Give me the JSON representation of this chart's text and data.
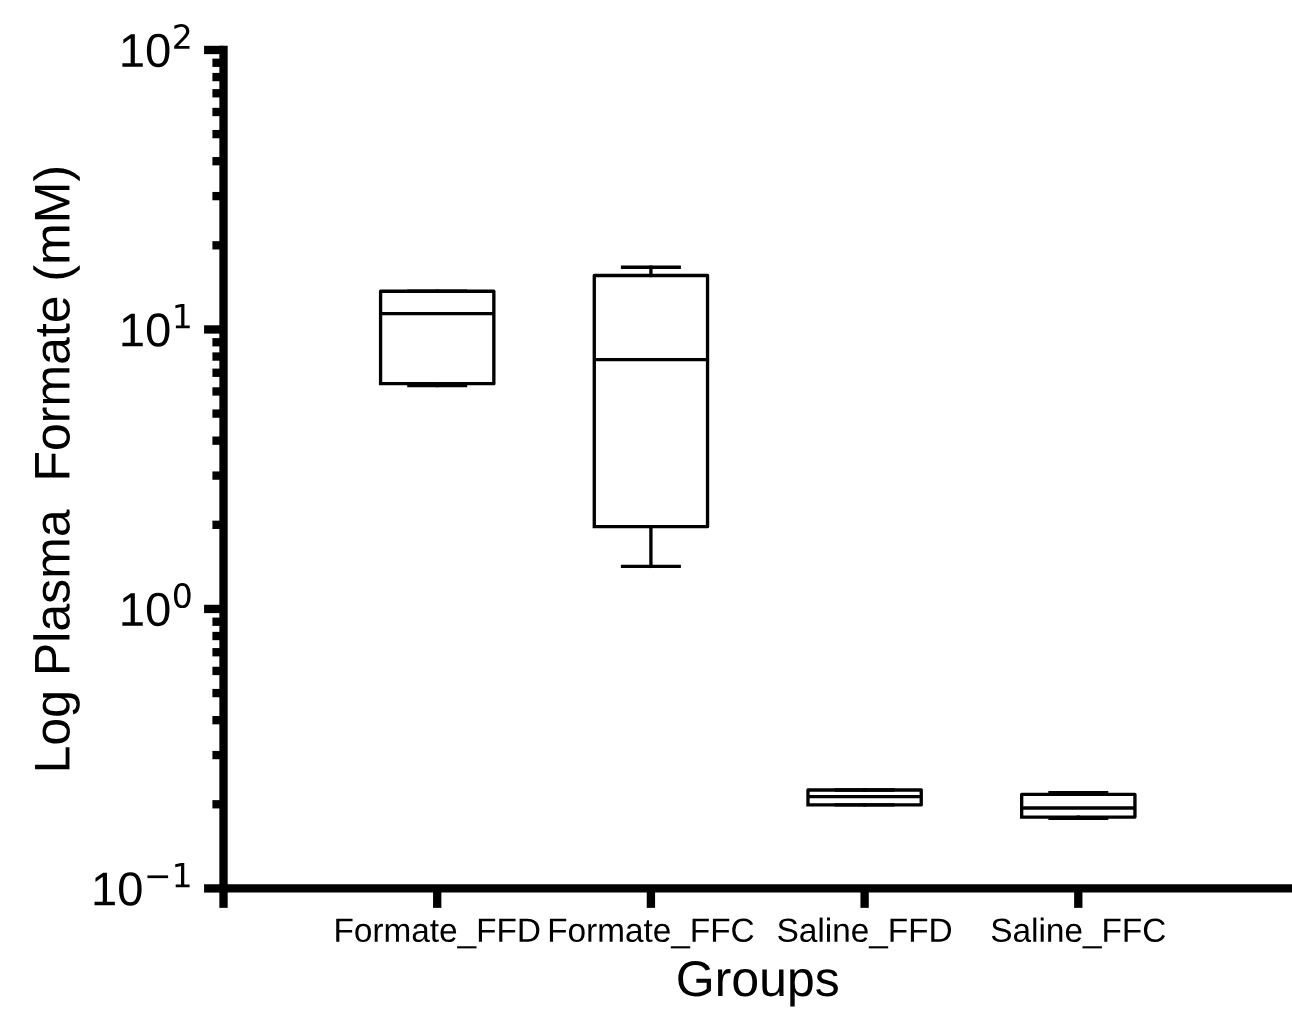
{
  "chart_data": {
    "type": "box",
    "xlabel": "Groups",
    "ylabel": "Log Plasma  Formate (mM)",
    "categories": [
      "Formate_FFD",
      "Formate_FFC",
      "Saline_FFD",
      "Saline_FFC"
    ],
    "boxes": [
      {
        "low": 6.3,
        "q1": 6.4,
        "median": 11.4,
        "q3": 13.7,
        "high": 13.7
      },
      {
        "low": 1.42,
        "q1": 1.97,
        "median": 7.8,
        "q3": 15.6,
        "high": 16.7
      },
      {
        "low": 0.199,
        "q1": 0.199,
        "median": 0.213,
        "q3": 0.225,
        "high": 0.225
      },
      {
        "low": 0.178,
        "q1": 0.18,
        "median": 0.194,
        "q3": 0.217,
        "high": 0.22
      }
    ],
    "color": "#000000",
    "log": "y",
    "ylim": [
      0.1,
      100
    ],
    "yticks": [
      {
        "value": 0.1,
        "label": "10$^{−1}$"
      },
      {
        "value": 1,
        "label": "10$^{0}$"
      },
      {
        "value": 10,
        "label": "10$^{1}$"
      },
      {
        "value": 100,
        "label": "10$^{2}$"
      }
    ],
    "grid": false,
    "legend": false
  }
}
